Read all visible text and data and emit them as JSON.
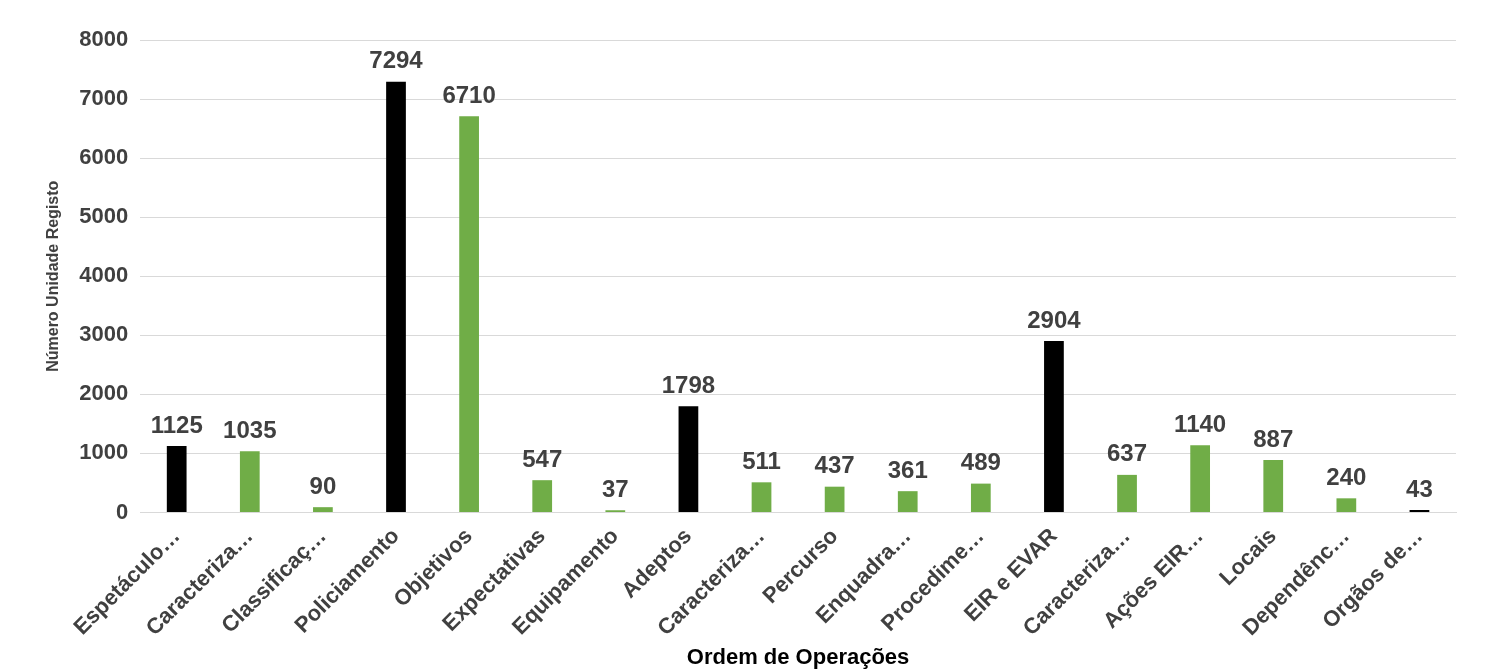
{
  "chart_data": {
    "type": "bar",
    "xlabel": "Ordem de Operações",
    "ylabel": "Número Unidade Registo",
    "categories": [
      "Espetáculo…",
      "Caracteriza…",
      "Classificaç…",
      "Policiamento",
      "Objetivos",
      "Expectativas",
      "Equipamento",
      "Adeptos",
      "Caracteriza…",
      "Percurso",
      "Enquadra…",
      "Procedime…",
      "EIR e EVAR",
      "Caracteriza…",
      "Ações EIR…",
      "Locais",
      "Dependênc…",
      "Orgãos de…"
    ],
    "values": [
      1125,
      1035,
      90,
      7294,
      6710,
      547,
      37,
      1798,
      511,
      437,
      361,
      489,
      2904,
      637,
      1140,
      887,
      240,
      43
    ],
    "colors": [
      "#000000",
      "#70ad47",
      "#70ad47",
      "#000000",
      "#70ad47",
      "#70ad47",
      "#70ad47",
      "#000000",
      "#70ad47",
      "#70ad47",
      "#70ad47",
      "#70ad47",
      "#000000",
      "#70ad47",
      "#70ad47",
      "#70ad47",
      "#70ad47",
      "#000000"
    ],
    "ylim": [
      0,
      8000
    ],
    "yticks": [
      0,
      1000,
      2000,
      3000,
      4000,
      5000,
      6000,
      7000,
      8000
    ],
    "grid": "y",
    "data_labels": true,
    "legend": false
  }
}
